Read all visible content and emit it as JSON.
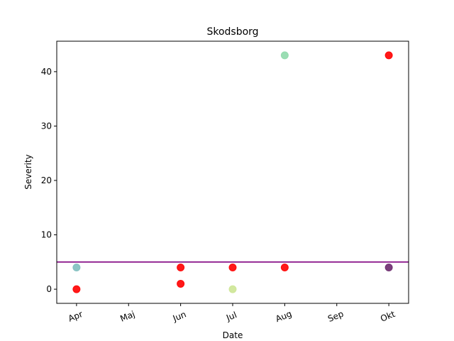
{
  "chart_data": {
    "type": "scatter",
    "title": "Skodsborg",
    "xlabel": "Date",
    "ylabel": "Severity",
    "x_ticks": [
      "Apr",
      "Maj",
      "Jun",
      "Jul",
      "Aug",
      "Sep",
      "Okt"
    ],
    "y_ticks": [
      0,
      10,
      20,
      30,
      40
    ],
    "xlim": [
      -0.38,
      6.38
    ],
    "ylim": [
      -2.6,
      45.6
    ],
    "grid": false,
    "points": [
      {
        "x": "Apr",
        "y": 4,
        "color": "#7fbfbf"
      },
      {
        "x": "Apr",
        "y": 0,
        "color": "#ff0000"
      },
      {
        "x": "Jun",
        "y": 4,
        "color": "#ff0000"
      },
      {
        "x": "Jun",
        "y": 1,
        "color": "#ff0000"
      },
      {
        "x": "Jul",
        "y": 4,
        "color": "#ff0000"
      },
      {
        "x": "Jul",
        "y": 0,
        "color": "#cde695"
      },
      {
        "x": "Aug",
        "y": 43,
        "color": "#8fd9ab"
      },
      {
        "x": "Aug",
        "y": 4,
        "color": "#ff0000"
      },
      {
        "x": "Okt",
        "y": 43,
        "color": "#ff0000"
      },
      {
        "x": "Okt",
        "y": 4,
        "color": "#6b2a6e"
      }
    ],
    "reference_line": {
      "y": 5,
      "color": "#800080"
    }
  }
}
